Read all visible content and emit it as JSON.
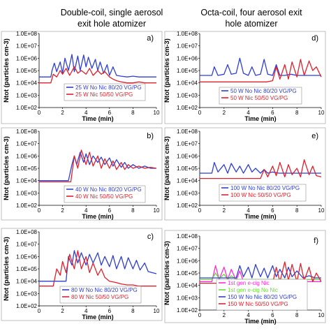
{
  "colors": {
    "blue": "#2f3fd0",
    "red": "#e0202c",
    "magenta": "#ff2bd6",
    "green": "#66dd33"
  },
  "col_titles": {
    "left": [
      "Double-coil, single aerosol",
      "exit hole atomizer"
    ],
    "right": [
      "Octa-coil, four aerosol exit",
      "hole atomizer"
    ]
  },
  "chart_data": [
    {
      "type": "line",
      "panel": "a)",
      "xlabel": "Time (min)",
      "ylabel": "Ntot (particles cm-3)",
      "xlim": [
        0,
        10
      ],
      "ylim_log10": [
        2,
        8
      ],
      "x_ticks": [
        "0",
        "2",
        "4",
        "6",
        "8",
        "10"
      ],
      "y_ticks": [
        "1.0E+02",
        "1.0E+03",
        "1.0E+04",
        "1.0E+05",
        "1.0E+06",
        "1.0E+07",
        "1.0E+08"
      ],
      "series": [
        {
          "name": "25 W  No Nic 80/20 VG/PG",
          "color": "blue",
          "x": [
            0,
            0.5,
            1,
            1.1,
            1.3,
            1.5,
            1.8,
            2,
            2.2,
            2.5,
            2.8,
            3,
            3.3,
            3.5,
            3.8,
            4,
            4.2,
            4.5,
            4.8,
            5,
            5.2,
            5.5,
            5.8,
            6,
            6.3,
            6.6,
            7,
            7.5,
            8,
            8.5,
            9,
            9.5,
            10
          ],
          "y": [
            30000,
            30000,
            30000,
            100000,
            400000,
            80000,
            500000,
            60000,
            1000000,
            100000,
            2000000,
            80000,
            1500000,
            100000,
            1800000,
            200000,
            1200000,
            150000,
            800000,
            100000,
            500000,
            60000,
            300000,
            40000,
            200000,
            40000,
            35000,
            30000,
            35000,
            30000,
            30000,
            30000,
            30000
          ]
        },
        {
          "name": "25 W  Nic 50/50 VG/PG",
          "color": "red",
          "x": [
            0,
            0.5,
            1,
            1.2,
            1.5,
            1.8,
            2,
            2.3,
            2.6,
            3,
            3.3,
            3.6,
            4,
            4.3,
            4.6,
            5,
            5.3,
            5.6,
            6,
            6.3,
            6.6,
            7,
            7.5,
            8,
            8.5,
            9,
            9.5,
            10
          ],
          "y": [
            10000,
            10000,
            10000,
            50000,
            30000,
            100000,
            50000,
            150000,
            40000,
            200000,
            60000,
            100000,
            50000,
            150000,
            40000,
            100000,
            50000,
            80000,
            30000,
            20000,
            15000,
            12000,
            10000,
            10000,
            12000,
            10000,
            10000,
            10000
          ]
        }
      ]
    },
    {
      "type": "line",
      "panel": "b)",
      "xlabel": "Time (min)",
      "ylabel": "Ntot (particles cm-3)",
      "xlim": [
        0,
        10
      ],
      "ylim_log10": [
        2,
        8
      ],
      "x_ticks": [
        "0",
        "2",
        "4",
        "6",
        "8",
        "10"
      ],
      "y_ticks": [
        "1.0E+02",
        "1.0E+03",
        "1.0E+04",
        "1.0E+05",
        "1.0E+06",
        "1.0E+07",
        "1.0E+08"
      ],
      "series": [
        {
          "name": "40 W  No Nic 80/20 VG/PG",
          "color": "blue",
          "x": [
            0,
            0.5,
            1,
            1.5,
            2,
            2.5,
            2.8,
            3,
            3.2,
            3.5,
            3.8,
            4,
            4.3,
            4.6,
            5,
            5.3,
            5.6,
            6,
            6.3,
            6.6,
            7,
            7.3,
            7.6,
            8,
            8.5,
            9,
            9.5,
            10
          ],
          "y": [
            10000,
            10000,
            10000,
            10000,
            10000,
            10000,
            200000,
            1000000,
            200000,
            2000000,
            300000,
            1500000,
            200000,
            1000000,
            300000,
            800000,
            200000,
            700000,
            150000,
            500000,
            120000,
            300000,
            100000,
            200000,
            100000,
            150000,
            100000,
            100000
          ]
        },
        {
          "name": "40 W  Nic 50/50 VG/PG",
          "color": "red",
          "x": [
            0,
            0.5,
            1,
            1.5,
            2,
            2.5,
            2.7,
            3,
            3.3,
            3.6,
            4,
            4.3,
            4.6,
            5,
            5.3,
            5.6,
            6,
            6.3,
            6.6,
            7,
            7.3,
            7.6,
            8,
            8.5,
            9,
            9.5,
            10
          ],
          "y": [
            8000,
            8000,
            8000,
            8000,
            8000,
            8000,
            8000,
            1000000,
            100000,
            3000000,
            200000,
            2000000,
            150000,
            1000000,
            100000,
            600000,
            100000,
            400000,
            80000,
            300000,
            80000,
            200000,
            100000,
            150000,
            100000,
            120000,
            100000
          ]
        }
      ]
    },
    {
      "type": "line",
      "panel": "c)",
      "xlabel": "Time (min)",
      "ylabel": "Ntot (particles cm-3)",
      "xlim": [
        0,
        10
      ],
      "ylim_log10": [
        2,
        8
      ],
      "x_ticks": [
        "0",
        "2",
        "4",
        "6",
        "8",
        "10"
      ],
      "y_ticks": [
        "1.0E+02",
        "1.0E+03",
        "1.0E+04",
        "1.0E+05",
        "1.0E+06",
        "1.0E+07",
        "1.0E+08"
      ],
      "series": [
        {
          "name": "80 W  No Nic 80/20 VG/PG",
          "color": "blue",
          "x": [
            0,
            0.5,
            1,
            1.5,
            2,
            2.3,
            2.5,
            2.8,
            3,
            3.3,
            3.6,
            4,
            4.3,
            4.6,
            5,
            5.3,
            5.6,
            6,
            6.3,
            6.6,
            7,
            7.3,
            7.6,
            8,
            8.3,
            8.6,
            9,
            9.3,
            9.6,
            10
          ],
          "y": [
            10000,
            10000,
            10000,
            10000,
            10000,
            10000,
            1000000,
            200000,
            3000000,
            300000,
            2000000,
            200000,
            1500000,
            300000,
            2000000,
            200000,
            1000000,
            150000,
            1200000,
            100000,
            1000000,
            100000,
            800000,
            100000,
            500000,
            80000,
            300000,
            60000,
            50000,
            40000
          ]
        },
        {
          "name": "80 W  Nic 50/50 VG/PG",
          "color": "red",
          "x": [
            0,
            0.5,
            1,
            1.2,
            1.5,
            1.8,
            2,
            2.3,
            2.6,
            3,
            3.3,
            3.6,
            4,
            4.3,
            4.6,
            5,
            5.3,
            5.6,
            6,
            6.5,
            7,
            7.5,
            8,
            8.5,
            9,
            9.5,
            10
          ],
          "y": [
            4000,
            4000,
            4000,
            4000,
            100000,
            30000,
            400000,
            50000,
            1500000,
            100000,
            3000000,
            100000,
            1000000,
            50000,
            300000,
            30000,
            100000,
            20000,
            10000,
            8000,
            6000,
            5000,
            5000,
            4000,
            4000,
            4000,
            4000
          ]
        }
      ]
    },
    {
      "type": "line",
      "panel": "d)",
      "xlabel": "Time (min)",
      "ylabel": "Ntot (particles cm-3)",
      "xlim": [
        0,
        10
      ],
      "ylim_log10": [
        2,
        8
      ],
      "x_ticks": [
        "0",
        "2",
        "4",
        "6",
        "8",
        "10"
      ],
      "y_ticks": [
        "1.0E+02",
        "1.0E+03",
        "1.0E+04",
        "1.0E+05",
        "1.0E+06",
        "1.0E+07",
        "1.0E+08"
      ],
      "series": [
        {
          "name": "50 W  No Nic 80/20 VG/PG",
          "color": "blue",
          "x": [
            0,
            0.5,
            1,
            1.2,
            1.5,
            2,
            2.3,
            2.6,
            3,
            3.3,
            3.6,
            4,
            4.3,
            4.6,
            5,
            5.3,
            5.6,
            6,
            6.3,
            6.6,
            7,
            7.5,
            8,
            8.5,
            9,
            9.5,
            10
          ],
          "y": [
            40000,
            40000,
            40000,
            200000,
            40000,
            50000,
            300000,
            50000,
            60000,
            1000000,
            60000,
            40000,
            200000,
            40000,
            50000,
            800000,
            50000,
            40000,
            300000,
            40000,
            40000,
            50000,
            40000,
            40000,
            40000,
            40000,
            40000
          ]
        },
        {
          "name": "50 W  Nic 50/50 VG/PG",
          "color": "red",
          "x": [
            0,
            0.5,
            1,
            1.5,
            2,
            2.5,
            3,
            3.5,
            4,
            4.5,
            5,
            5.5,
            6,
            6.3,
            6.6,
            7,
            7.3,
            7.6,
            8,
            8.3,
            8.6,
            9,
            9.3,
            9.6,
            10
          ],
          "y": [
            12000,
            12000,
            12000,
            12000,
            12000,
            12000,
            12000,
            12000,
            12000,
            12000,
            12000,
            12000,
            15000,
            200000,
            20000,
            300000,
            20000,
            500000,
            30000,
            800000,
            40000,
            600000,
            100000,
            200000,
            30000
          ]
        }
      ]
    },
    {
      "type": "line",
      "panel": "e)",
      "xlabel": "Time (min)",
      "ylabel": "Ntot (particles cm-3)",
      "xlim": [
        0,
        10
      ],
      "ylim_log10": [
        2,
        8
      ],
      "x_ticks": [
        "0",
        "2",
        "4",
        "6",
        "8",
        "10"
      ],
      "y_ticks": [
        "1.0E+02",
        "1.0E+03",
        "1.0E+04",
        "1.0E+05",
        "1.0E+06",
        "1.0E+07",
        "1.0E+08"
      ],
      "series": [
        {
          "name": "100 W  No Nic 80/20 VG/PG",
          "color": "blue",
          "x": [
            0,
            0.5,
            1,
            1.2,
            1.5,
            2,
            2.3,
            2.6,
            3,
            3.3,
            3.6,
            4,
            4.3,
            4.6,
            5,
            5.3,
            5.6,
            6,
            6.5,
            7,
            7.5,
            8,
            8.5,
            9,
            9.5,
            10
          ],
          "y": [
            40000,
            40000,
            40000,
            300000,
            50000,
            200000,
            40000,
            250000,
            50000,
            150000,
            40000,
            200000,
            50000,
            100000,
            40000,
            80000,
            40000,
            50000,
            40000,
            40000,
            40000,
            40000,
            40000,
            40000,
            40000,
            40000
          ]
        },
        {
          "name": "100 W  Nic 50/50 VG/PG",
          "color": "red",
          "x": [
            0,
            0.5,
            1,
            1.5,
            2,
            2.5,
            3,
            3.5,
            4,
            4.5,
            5,
            5.3,
            5.6,
            6,
            6.3,
            6.6,
            7,
            7.3,
            7.6,
            8,
            8.3,
            8.6,
            9,
            9.3,
            9.6,
            10
          ],
          "y": [
            15000,
            15000,
            15000,
            15000,
            15000,
            15000,
            15000,
            15000,
            15000,
            15000,
            15000,
            80000,
            20000,
            150000,
            25000,
            300000,
            20000,
            200000,
            30000,
            100000,
            20000,
            500000,
            30000,
            150000,
            25000,
            20000
          ]
        }
      ]
    },
    {
      "type": "line",
      "panel": "f)",
      "xlabel": "Time (min)",
      "ylabel": "Ntot (particles cm-3)",
      "xlim": [
        0,
        10
      ],
      "ylim_log10": [
        2,
        8
      ],
      "x_ticks": [
        "0",
        "2",
        "4",
        "6",
        "8",
        "10"
      ],
      "y_ticks": [
        "1.0E+02",
        "1.0E+03",
        "1.0E+04",
        "1.0E+05",
        "1.0E+06",
        "1.0E+07",
        "1.0E+08"
      ],
      "series": [
        {
          "name": "1st gen e-cig Nic",
          "color": "magenta",
          "x": [
            0,
            0.5,
            1,
            1.3,
            1.6,
            2,
            2.3,
            2.6,
            3,
            3.3,
            3.6,
            4,
            4.5,
            5,
            5.5,
            6,
            6.5,
            7,
            7.5,
            8,
            8.5,
            9,
            9.5,
            10
          ],
          "y": [
            20000,
            20000,
            20000,
            400000,
            30000,
            300000,
            30000,
            200000,
            25000,
            150000,
            20000,
            20000,
            20000,
            20000,
            20000,
            20000,
            20000,
            20000,
            20000,
            20000,
            20000,
            20000,
            20000,
            20000
          ]
        },
        {
          "name": "1st gen e-cig No Nic",
          "color": "green",
          "x": [
            0,
            0.5,
            1,
            1.3,
            1.6,
            2,
            2.3,
            2.6,
            3,
            3.5,
            4,
            4.5,
            5,
            5.5,
            6,
            6.5,
            7,
            7.5,
            8,
            8.5,
            9,
            9.5,
            10
          ],
          "y": [
            30000,
            30000,
            30000,
            100000,
            35000,
            80000,
            30000,
            60000,
            30000,
            30000,
            30000,
            30000,
            30000,
            30000,
            30000,
            30000,
            30000,
            30000,
            30000,
            30000,
            30000,
            30000,
            30000
          ]
        },
        {
          "name": "150 W  No Nic 80/20 VG/PG",
          "color": "blue",
          "x": [
            0,
            0.5,
            1,
            1.5,
            2,
            2.5,
            3,
            3.3,
            3.6,
            4,
            4.3,
            4.6,
            5,
            5.3,
            5.6,
            6,
            6.3,
            6.6,
            7,
            7.3,
            7.6,
            8,
            8.5,
            9,
            9.5,
            10
          ],
          "y": [
            40000,
            40000,
            40000,
            40000,
            40000,
            40000,
            40000,
            400000,
            50000,
            300000,
            40000,
            500000,
            50000,
            250000,
            40000,
            400000,
            50000,
            200000,
            40000,
            300000,
            50000,
            150000,
            40000,
            60000,
            40000,
            40000
          ]
        },
        {
          "name": "150 W  Nic 50/50 VG/PG",
          "color": "red",
          "x": [
            0,
            0.5,
            1,
            1.5,
            2,
            2.5,
            3,
            3.5,
            4,
            4.5,
            5,
            5.5,
            6,
            6.3,
            6.6,
            7,
            7.3,
            7.6,
            8,
            8.3,
            8.6,
            9,
            9.3,
            9.6,
            10
          ],
          "y": [
            15000,
            15000,
            15000,
            15000,
            15000,
            15000,
            15000,
            15000,
            15000,
            15000,
            15000,
            15000,
            15000,
            300000,
            20000,
            800000,
            25000,
            500000,
            20000,
            600000,
            25000,
            300000,
            20000,
            100000,
            20000
          ]
        }
      ]
    }
  ]
}
